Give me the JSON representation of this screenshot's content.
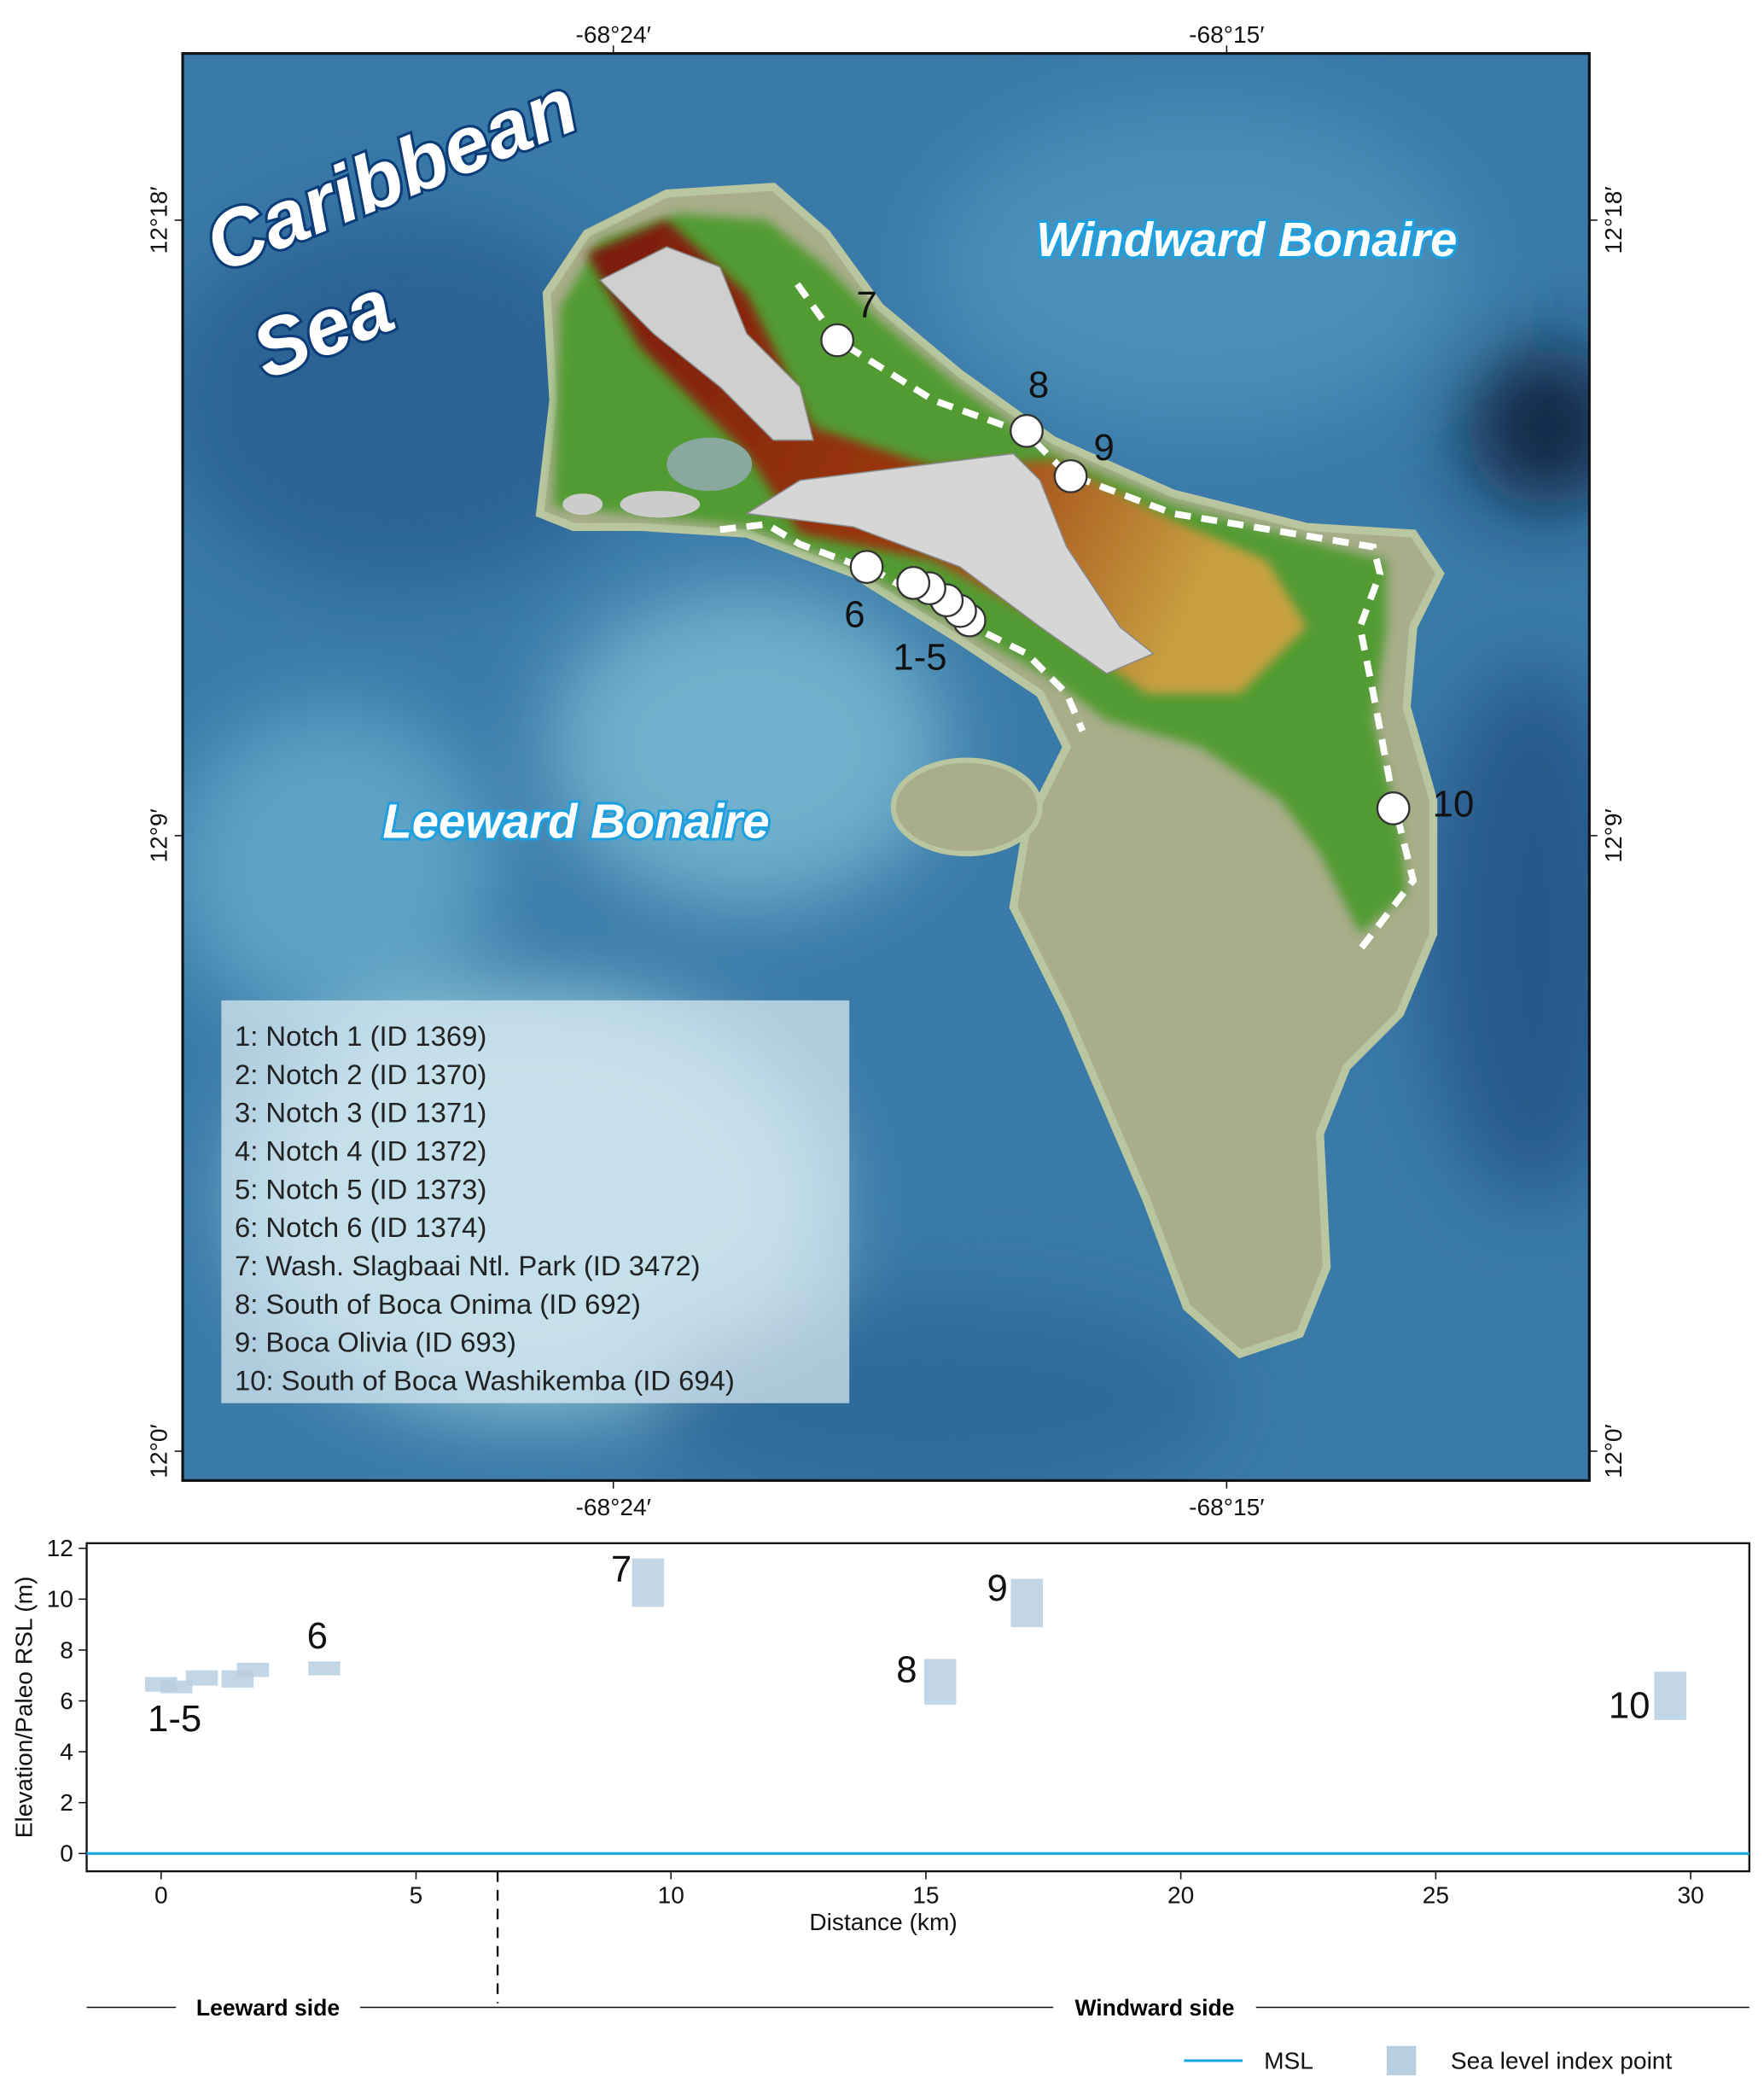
{
  "map": {
    "lon_ticks": [
      {
        "value": -68.4,
        "label": "-68°24′"
      },
      {
        "value": -68.25,
        "label": "-68°15′"
      }
    ],
    "lat_ticks": [
      {
        "value": 12.3,
        "label": "12°18′"
      },
      {
        "value": 12.15,
        "label": "12°9′"
      },
      {
        "value": 12.0,
        "label": "12°0′"
      }
    ],
    "sea_label": [
      "Caribbean",
      "Sea"
    ],
    "region_labels": [
      "Windward Bonaire",
      "Leeward Bonaire"
    ],
    "site_labels": [
      "7",
      "8",
      "9",
      "6",
      "1-5",
      "10"
    ],
    "legend": [
      "1: Notch 1 (ID 1369)",
      "2: Notch 2 (ID 1370)",
      "3: Notch 3 (ID 1371)",
      "4: Notch 4 (ID 1372)",
      "5: Notch 5 (ID 1373)",
      "6: Notch 6 (ID 1374)",
      "7: Wash. Slagbaai Ntl. Park (ID 3472)",
      "8: South of Boca Onima (ID 692)",
      "9: Boca Olivia (ID 693)",
      "10: South of Boca Washikemba  (ID 694)"
    ]
  },
  "chart_data": {
    "type": "box",
    "x_label": "Distance (km)",
    "y_label": "Elevation/Paleo RSL (m)",
    "xlim": [
      -1.46,
      31.15
    ],
    "ylim": [
      -0.7,
      12.2
    ],
    "xticks": [
      0,
      5,
      10,
      15,
      20,
      25,
      30
    ],
    "yticks": [
      0,
      2,
      4,
      6,
      8,
      10,
      12
    ],
    "series": [
      {
        "name": "Sea level index point",
        "color": "#b9cfe0",
        "x": [
          0.0,
          0.3,
          0.8,
          1.5,
          1.8,
          3.2,
          9.55,
          15.28,
          16.98,
          29.6
        ],
        "low": [
          6.36,
          6.3,
          6.6,
          6.52,
          6.94,
          7.0,
          9.7,
          5.85,
          8.9,
          5.25
        ],
        "high": [
          6.94,
          6.8,
          7.2,
          7.2,
          7.5,
          7.55,
          11.6,
          7.65,
          10.8,
          7.15
        ]
      }
    ],
    "reference_line": {
      "name": "MSL",
      "color": "#1aa7e6",
      "value": 0
    },
    "annotations": [
      "1-5",
      "6",
      "7",
      "8",
      "9",
      "10"
    ],
    "divider_x": 6.6,
    "side_labels": [
      "Leeward side",
      "Windward side"
    ]
  }
}
